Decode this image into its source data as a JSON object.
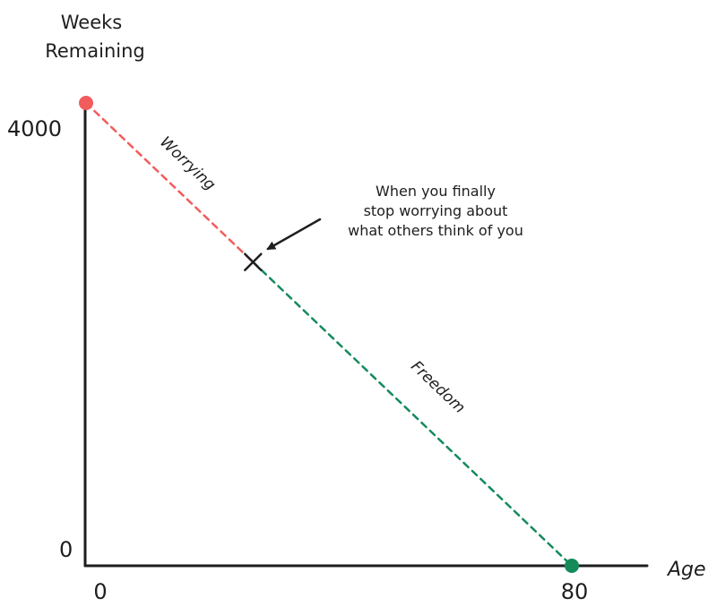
{
  "chart_data": {
    "type": "line",
    "title": "",
    "xlabel": "Age",
    "ylabel_lines": [
      "Weeks",
      "Remaining"
    ],
    "xlim": [
      0,
      80
    ],
    "ylim": [
      0,
      4000
    ],
    "x_ticks": [
      0,
      80
    ],
    "y_ticks": [
      0,
      4000
    ],
    "grid": false,
    "points": {
      "start": {
        "x": 0,
        "y": 4000
      },
      "turning": {
        "x": 27.5,
        "y": 2625
      },
      "end": {
        "x": 80,
        "y": 0
      }
    },
    "segments": [
      {
        "name": "Worrying",
        "from": "start",
        "to": "turning",
        "color": "#f25c5c",
        "style": "dashed"
      },
      {
        "name": "Freedom",
        "from": "turning",
        "to": "end",
        "color": "#158a5b",
        "style": "dashed"
      }
    ],
    "annotation": {
      "lines": [
        "When you finally",
        "stop worrying about",
        "what others think of you"
      ],
      "points_to": "turning"
    },
    "colors": {
      "axis": "#1e1e1e",
      "start_marker": "#f25c5c",
      "end_marker": "#158a5b"
    }
  }
}
